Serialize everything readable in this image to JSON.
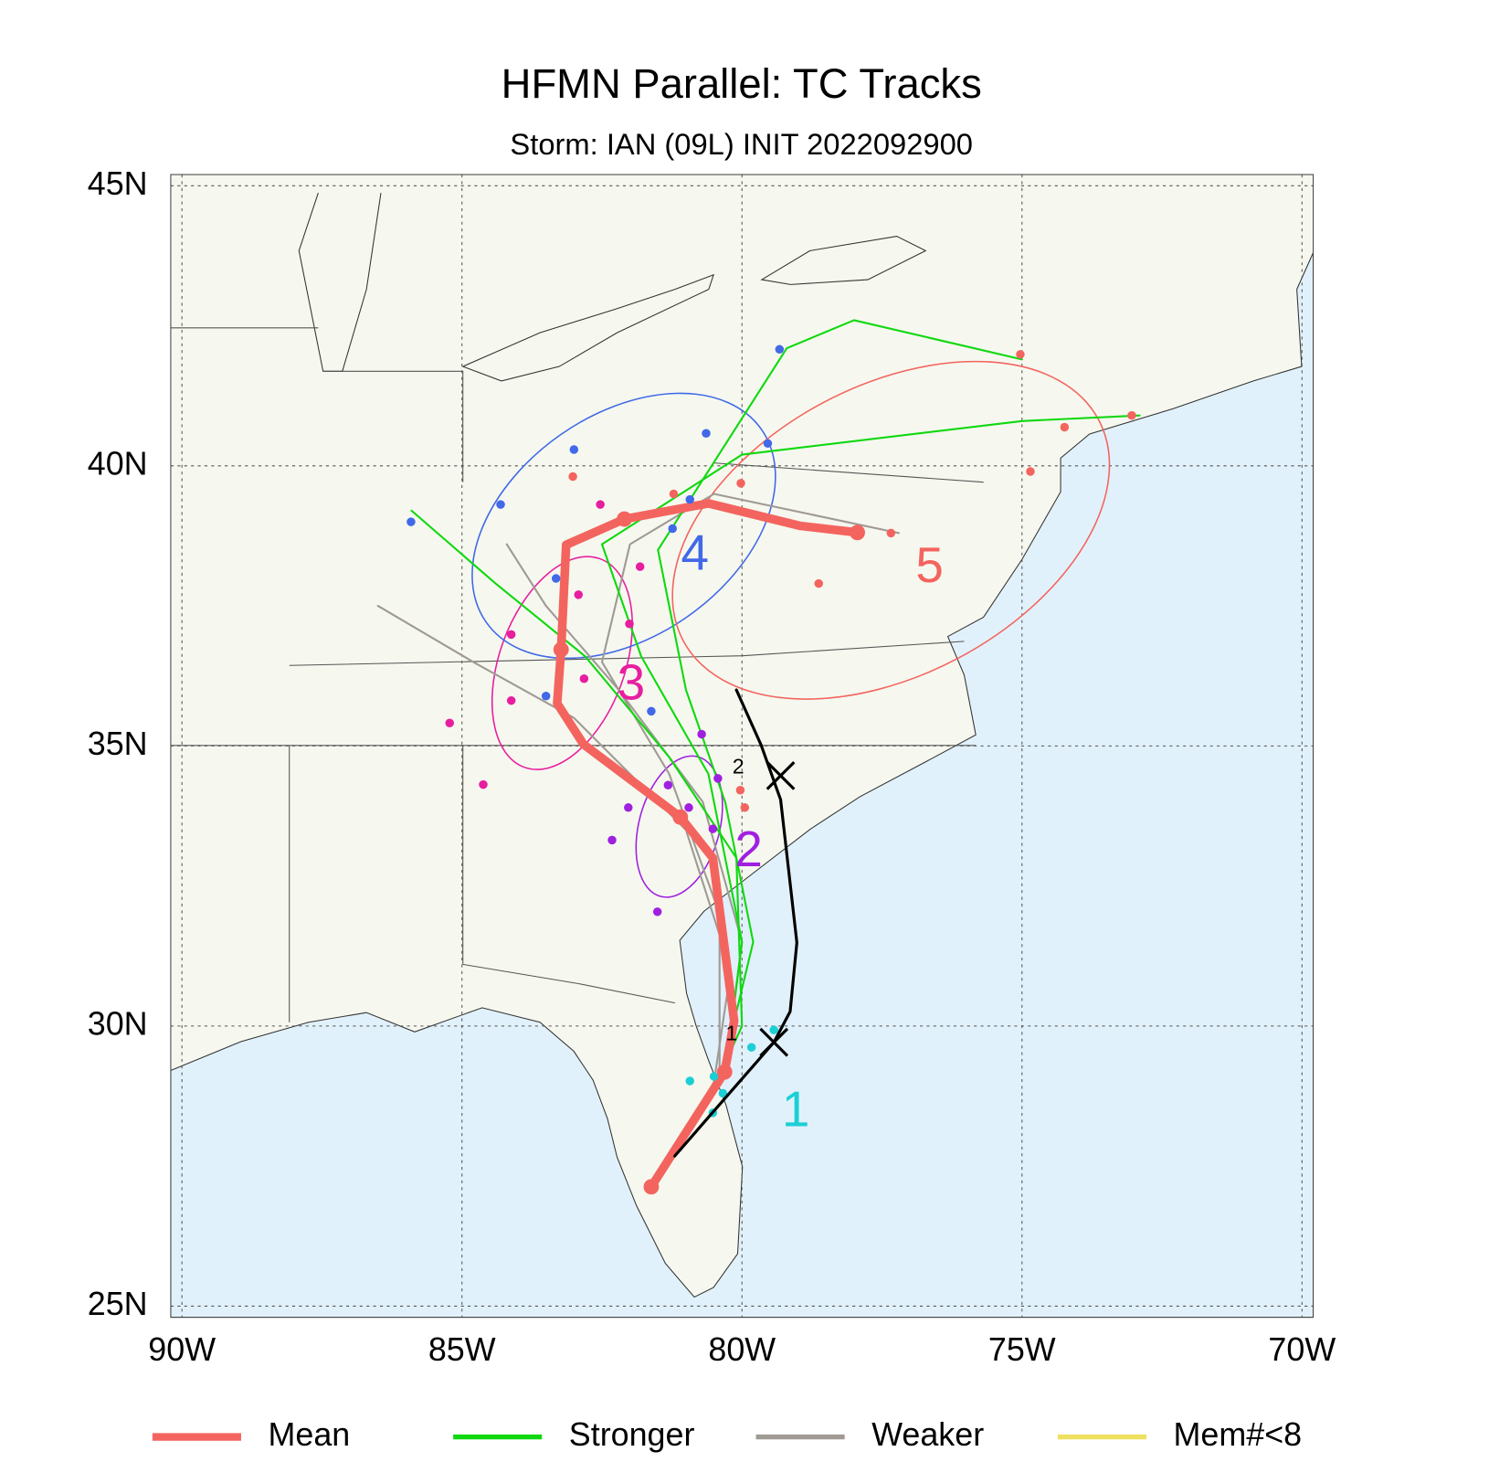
{
  "chart_data": {
    "type": "map",
    "title": "HFMN Parallel: TC Tracks",
    "subtitle": "Storm: IAN (09L) INIT 2022092900",
    "xlim": [
      -90.2,
      -69.8
    ],
    "ylim": [
      24.8,
      45.2
    ],
    "xticks": [
      {
        "value": -90,
        "label": "90W"
      },
      {
        "value": -85,
        "label": "85W"
      },
      {
        "value": -80,
        "label": "80W"
      },
      {
        "value": -75,
        "label": "75W"
      },
      {
        "value": -70,
        "label": "70W"
      }
    ],
    "yticks": [
      {
        "value": 25,
        "label": "25N"
      },
      {
        "value": 30,
        "label": "30N"
      },
      {
        "value": 35,
        "label": "35N"
      },
      {
        "value": 40,
        "label": "40N"
      },
      {
        "value": 45,
        "label": "45N"
      }
    ],
    "grid": true,
    "series": [
      {
        "name": "Mean",
        "color": "#f4645f",
        "tracks": [
          {
            "x": [
              -81.62,
              -80.31,
              -80.14,
              -80.52,
              -81.1,
              -82.83,
              -83.3,
              -83.23,
              -83.14,
              -82.1,
              -80.6,
              -78.97,
              -77.94
            ],
            "values": [
              27.13,
              29.18,
              30.09,
              33.0,
              33.73,
              35.03,
              35.76,
              36.72,
              38.59,
              39.05,
              39.33,
              38.93,
              38.81
            ]
          }
        ],
        "points": {
          "x": [
            -81.62,
            -80.31,
            -81.1,
            -83.23,
            -82.1,
            -77.94
          ],
          "values": [
            27.13,
            29.18,
            33.73,
            36.72,
            39.05,
            38.81
          ]
        }
      },
      {
        "name": "Stronger",
        "color": "#10d810",
        "tracks": [
          {
            "x": [
              -81.6,
              -80.5,
              -80.0,
              -80.1,
              -81.3,
              -82.8,
              -84.4,
              -85.9
            ],
            "values": [
              27.1,
              28.9,
              30.0,
              33.0,
              34.8,
              36.6,
              37.9,
              39.2
            ]
          },
          {
            "x": [
              -81.6,
              -80.3,
              -80.0,
              -80.6,
              -81.8,
              -82.5,
              -80.0,
              -75.0,
              -72.9
            ],
            "values": [
              27.1,
              29.1,
              31.5,
              34.5,
              36.6,
              38.6,
              40.2,
              40.8,
              40.9
            ]
          },
          {
            "x": [
              -81.6,
              -80.4,
              -79.8,
              -80.3,
              -81.0,
              -81.5,
              -79.2,
              -78.0,
              -75.0
            ],
            "values": [
              27.1,
              29.0,
              31.5,
              34.0,
              36.0,
              38.5,
              42.1,
              42.6,
              41.9
            ]
          }
        ]
      },
      {
        "name": "Weaker",
        "color": "#a09a94",
        "tracks": [
          {
            "x": [
              -81.6,
              -80.5,
              -80.2,
              -81.0,
              -83.0,
              -84.8,
              -86.5
            ],
            "values": [
              27.1,
              29.0,
              31.0,
              33.5,
              35.5,
              36.5,
              37.5
            ]
          },
          {
            "x": [
              -81.6,
              -80.4,
              -80.4,
              -81.3,
              -82.5,
              -82.0,
              -80.5,
              -77.2
            ],
            "values": [
              27.1,
              29.1,
              32.0,
              34.5,
              36.5,
              38.6,
              39.5,
              38.8
            ]
          },
          {
            "x": [
              -81.6,
              -80.3,
              -80.0,
              -80.7,
              -82.2,
              -83.5,
              -84.2
            ],
            "values": [
              27.1,
              29.2,
              31.5,
              34.0,
              36.0,
              37.5,
              38.6
            ]
          }
        ]
      },
      {
        "name": "Mem#<8",
        "color": "#f0e060",
        "tracks": []
      }
    ],
    "best_track": {
      "color": "#000000",
      "x": [
        -81.2,
        -80.6,
        -79.43,
        -79.14,
        -79.02,
        -79.31,
        -79.66,
        -80.1
      ],
      "values": [
        27.68,
        28.37,
        29.71,
        30.26,
        31.49,
        34.04,
        35.02,
        36.0
      ],
      "markers": [
        {
          "label": "1",
          "x": -79.43,
          "y": 29.71
        },
        {
          "label": "2",
          "x": -79.31,
          "y": 34.47
        }
      ]
    },
    "member_points": [
      {
        "color": "#1ccfd6",
        "x": [
          -80.93,
          -80.5,
          -80.34,
          -79.83,
          -79.43,
          -80.52
        ],
        "values": [
          29.02,
          29.1,
          28.8,
          29.62,
          29.93,
          28.45
        ]
      },
      {
        "color": "#a020e0",
        "x": [
          -80.72,
          -80.43,
          -81.32,
          -82.03,
          -80.52,
          -82.32,
          -81.51,
          -80.95
        ],
        "values": [
          35.21,
          34.42,
          34.3,
          33.9,
          33.52,
          33.32,
          32.04,
          33.9
        ]
      },
      {
        "color": "#e81ea0",
        "x": [
          -85.22,
          -84.62,
          -84.12,
          -84.12,
          -82.92,
          -82.01,
          -81.82,
          -82.82,
          -82.53
        ],
        "values": [
          35.41,
          34.31,
          36.99,
          35.81,
          37.7,
          37.18,
          38.2,
          36.2,
          39.31
        ]
      },
      {
        "color": "#4169e8",
        "x": [
          -85.91,
          -84.31,
          -83.32,
          -83.0,
          -83.5,
          -81.62,
          -81.24,
          -80.93,
          -80.64,
          -79.54,
          -79.33
        ],
        "values": [
          39.0,
          39.31,
          37.99,
          40.29,
          35.89,
          35.62,
          38.88,
          39.4,
          40.58,
          40.4,
          42.08
        ]
      },
      {
        "color": "#f4645f",
        "x": [
          -75.03,
          -74.24,
          -73.04,
          -74.85,
          -77.34,
          -78.63,
          -80.02,
          -81.22,
          -80.03,
          -79.95,
          -83.02
        ],
        "values": [
          41.99,
          40.69,
          40.9,
          39.9,
          38.8,
          37.9,
          39.69,
          39.5,
          34.21,
          33.9,
          39.81
        ]
      }
    ],
    "ellipses": [
      {
        "color": "#a020e0",
        "cx": -81.12,
        "cy": 33.56,
        "rx": 0.72,
        "ry": 1.29,
        "angle": 15
      },
      {
        "color": "#e81ea0",
        "cx": -83.21,
        "cy": 36.48,
        "rx": 1.12,
        "ry": 1.98,
        "angle": 20
      },
      {
        "color": "#4169e8",
        "cx": -82.11,
        "cy": 38.93,
        "rx": 3.0,
        "ry": 1.98,
        "angle": -35
      },
      {
        "color": "#f4645f",
        "cx": -77.34,
        "cy": 38.85,
        "rx": 4.2,
        "ry": 2.58,
        "angle": -28
      }
    ],
    "labels": [
      {
        "text": "1",
        "color": "#1ccfd6",
        "x": -79.04,
        "y": 28.45
      },
      {
        "text": "2",
        "color": "#a020e0",
        "x": -79.88,
        "y": 33.09
      },
      {
        "text": "3",
        "color": "#e81ea0",
        "x": -81.98,
        "y": 36.07
      },
      {
        "text": "4",
        "color": "#4169e8",
        "x": -80.84,
        "y": 38.38
      },
      {
        "text": "5",
        "color": "#f4645f",
        "x": -76.65,
        "y": 38.16
      }
    ]
  }
}
